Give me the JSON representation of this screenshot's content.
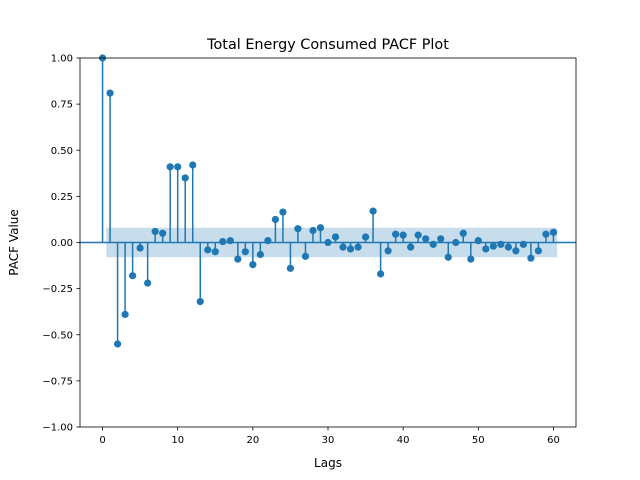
{
  "chart_data": {
    "type": "scatter",
    "title": "Total Energy Consumed PACF Plot",
    "xlabel": "Lags",
    "ylabel": "PACF Value",
    "xlim": [
      -3.0,
      63.0
    ],
    "ylim": [
      -1.0,
      1.0
    ],
    "grid": false,
    "legend": "none",
    "x_ticks": [
      0,
      10,
      20,
      30,
      40,
      50,
      60
    ],
    "x_tick_labels": [
      "0",
      "10",
      "20",
      "30",
      "40",
      "50",
      "60"
    ],
    "y_ticks": [
      -1.0,
      -0.75,
      -0.5,
      -0.25,
      0.0,
      0.25,
      0.5,
      0.75,
      1.0
    ],
    "y_tick_labels": [
      "−1.00",
      "−0.75",
      "−0.50",
      "−0.25",
      "0.00",
      "0.25",
      "0.50",
      "0.75",
      "1.00"
    ],
    "confidence_band": {
      "lower": -0.08,
      "upper": 0.08,
      "x_start": 0.5,
      "x_end": 60.5,
      "color": "#1f77b4",
      "alpha": 0.25
    },
    "series_color": "#1f77b4",
    "lags": [
      0,
      1,
      2,
      3,
      4,
      5,
      6,
      7,
      8,
      9,
      10,
      11,
      12,
      13,
      14,
      15,
      16,
      17,
      18,
      19,
      20,
      21,
      22,
      23,
      24,
      25,
      26,
      27,
      28,
      29,
      30,
      31,
      32,
      33,
      34,
      35,
      36,
      37,
      38,
      39,
      40,
      41,
      42,
      43,
      44,
      45,
      46,
      47,
      48,
      49,
      50,
      51,
      52,
      53,
      54,
      55,
      56,
      57,
      58,
      59,
      60
    ],
    "values": [
      1.0,
      0.81,
      -0.55,
      -0.39,
      -0.18,
      -0.03,
      -0.22,
      0.06,
      0.05,
      0.41,
      0.41,
      0.35,
      0.42,
      -0.32,
      -0.04,
      -0.05,
      0.005,
      0.01,
      -0.09,
      -0.05,
      -0.12,
      -0.065,
      0.01,
      0.125,
      0.165,
      -0.14,
      0.075,
      -0.075,
      0.065,
      0.08,
      0.0,
      0.03,
      -0.025,
      -0.035,
      -0.025,
      0.03,
      0.17,
      -0.17,
      -0.045,
      0.045,
      0.04,
      -0.025,
      0.04,
      0.02,
      -0.01,
      0.02,
      -0.08,
      0.0,
      0.05,
      -0.09,
      0.01,
      -0.035,
      -0.02,
      -0.01,
      -0.025,
      -0.045,
      -0.01,
      -0.085,
      -0.045,
      0.045,
      0.055
    ]
  }
}
